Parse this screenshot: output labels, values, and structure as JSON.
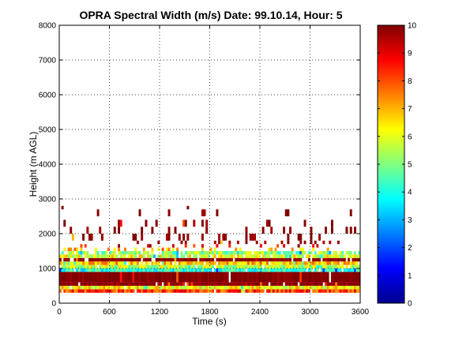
{
  "chart_data": {
    "type": "heatmap",
    "title": "OPRA Spectral Width (m/s)  Date: 99.10.14, Hour: 5",
    "xlabel": "Time (s)",
    "ylabel": "Height (m AGL)",
    "xlim": [
      0,
      3600
    ],
    "ylim": [
      0,
      8000
    ],
    "x_ticks": [
      0,
      600,
      1200,
      1800,
      2400,
      3000,
      3600
    ],
    "y_ticks": [
      0,
      1000,
      2000,
      3000,
      4000,
      5000,
      6000,
      7000,
      8000
    ],
    "grid": true,
    "colorbar": {
      "range": [
        0,
        10
      ],
      "ticks": [
        0,
        1,
        2,
        3,
        4,
        5,
        6,
        7,
        8,
        9,
        10
      ],
      "colormap": "jet",
      "position": "right"
    },
    "bands": [
      {
        "height_bottom": 300,
        "height_top": 400,
        "value": 8.2,
        "coverage": 0.97
      },
      {
        "height_bottom": 400,
        "height_top": 500,
        "value": 6.3,
        "coverage": 0.97
      },
      {
        "height_bottom": 500,
        "height_top": 600,
        "value": 9.8,
        "coverage": 0.97
      },
      {
        "height_bottom": 600,
        "height_top": 900,
        "value": 10,
        "coverage": 0.99
      },
      {
        "height_bottom": 900,
        "height_top": 1000,
        "value": 4.2,
        "coverage": 0.95
      },
      {
        "height_bottom": 1000,
        "height_top": 1100,
        "value": 5.6,
        "coverage": 0.95
      },
      {
        "height_bottom": 1100,
        "height_top": 1200,
        "value": 6.8,
        "coverage": 0.9
      },
      {
        "height_bottom": 1200,
        "height_top": 1300,
        "value": 9.9,
        "coverage": 0.9
      },
      {
        "height_bottom": 1300,
        "height_top": 1400,
        "value": 6.0,
        "coverage": 0.85
      },
      {
        "height_bottom": 1400,
        "height_top": 1500,
        "value": 5.2,
        "coverage": 0.8
      },
      {
        "height_bottom": 1500,
        "height_top": 1600,
        "value": 7.0,
        "coverage": 0.25
      },
      {
        "height_bottom": 1600,
        "height_top": 1700,
        "value": 9.0,
        "coverage": 0.12
      },
      {
        "height_bottom": 1700,
        "height_top": 1800,
        "value": 9.8,
        "coverage": 0.12
      },
      {
        "height_bottom": 1800,
        "height_top": 2000,
        "value": 9.9,
        "coverage": 0.18
      },
      {
        "height_bottom": 2000,
        "height_top": 2200,
        "value": 9.9,
        "coverage": 0.15
      },
      {
        "height_bottom": 2200,
        "height_top": 2400,
        "value": 9.9,
        "coverage": 0.06
      },
      {
        "height_bottom": 2500,
        "height_top": 2700,
        "value": 9.9,
        "coverage": 0.04
      },
      {
        "height_bottom": 2700,
        "height_top": 2800,
        "value": 9.9,
        "coverage": 0.004
      }
    ]
  }
}
